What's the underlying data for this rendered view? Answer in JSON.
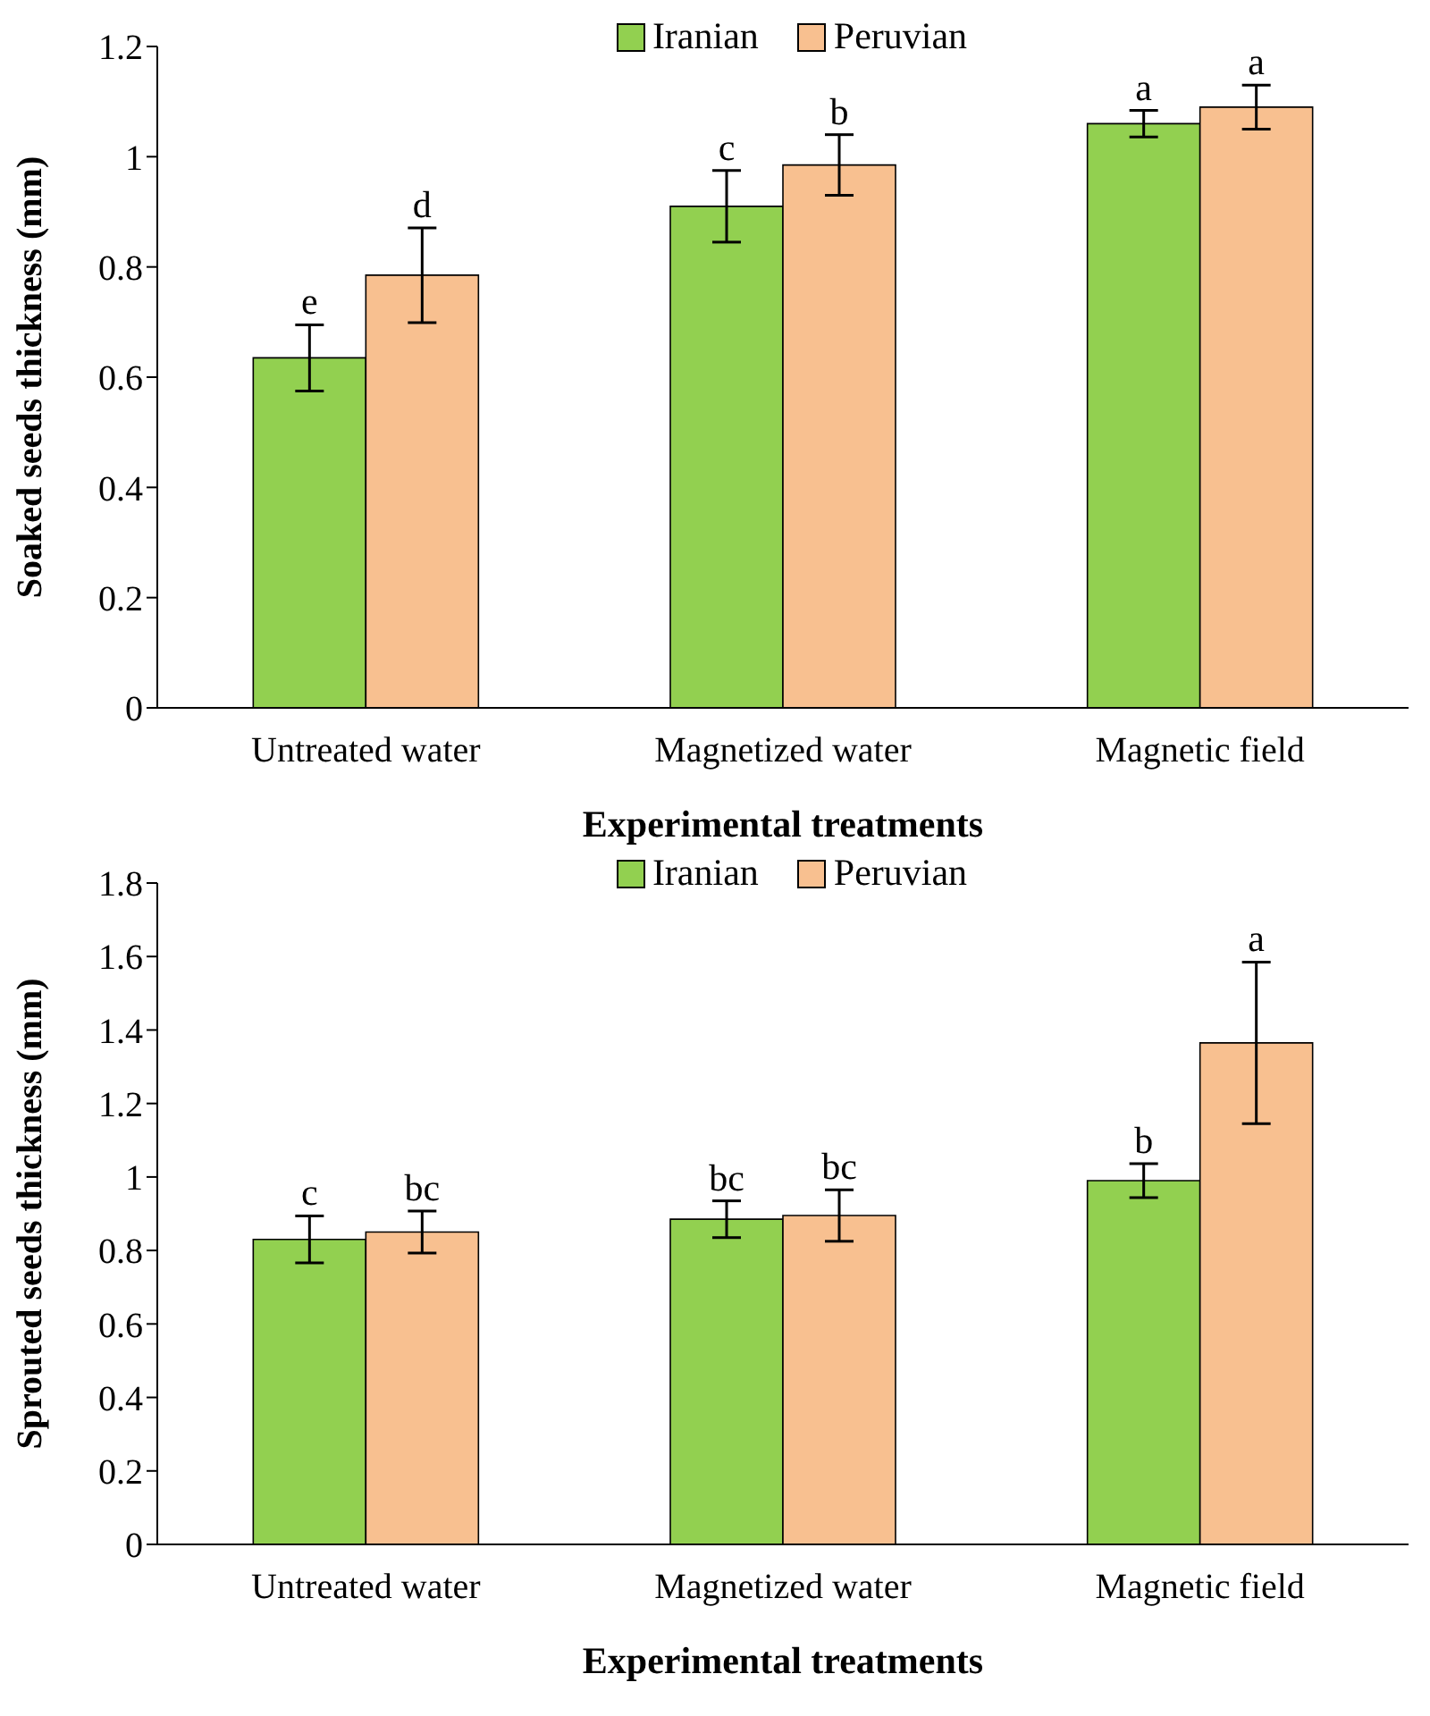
{
  "chart_data": [
    {
      "type": "bar",
      "xlabel": "Experimental treatments",
      "ylabel": "Soaked seeds thickness (mm)",
      "categories": [
        "Untreated water",
        "Magnetized water",
        "Magnetic field"
      ],
      "series": [
        {
          "name": "Iranian",
          "color": "#92d050",
          "values": [
            0.635,
            0.91,
            1.06
          ],
          "errors": [
            0.06,
            0.065,
            0.024
          ],
          "value_labels": [
            "e",
            "c",
            "a"
          ]
        },
        {
          "name": "Peruvian",
          "color": "#f8c090",
          "values": [
            0.785,
            0.985,
            1.09
          ],
          "errors": [
            0.086,
            0.055,
            0.04
          ],
          "value_labels": [
            "d",
            "b",
            "a"
          ]
        }
      ],
      "ylim": [
        0,
        1.2
      ],
      "yticks": [
        0,
        0.2,
        0.4,
        0.6,
        0.8,
        1,
        1.2
      ],
      "grid": false,
      "legend": "top"
    },
    {
      "type": "bar",
      "xlabel": "Experimental treatments",
      "ylabel": "Sprouted seeds thickness (mm)",
      "categories": [
        "Untreated water",
        "Magnetized water",
        "Magnetic field"
      ],
      "series": [
        {
          "name": "Iranian",
          "color": "#92d050",
          "values": [
            0.83,
            0.885,
            0.99
          ],
          "errors": [
            0.064,
            0.05,
            0.046
          ],
          "value_labels": [
            "c",
            "bc",
            "b"
          ]
        },
        {
          "name": "Peruvian",
          "color": "#f8c090",
          "values": [
            0.85,
            0.895,
            1.365
          ],
          "errors": [
            0.057,
            0.07,
            0.22
          ],
          "value_labels": [
            "bc",
            "bc",
            "a"
          ]
        }
      ],
      "ylim": [
        0,
        1.8
      ],
      "yticks": [
        0,
        0.2,
        0.4,
        0.6,
        0.8,
        1,
        1.2,
        1.4,
        1.6,
        1.8
      ],
      "grid": false,
      "legend": "top"
    }
  ]
}
